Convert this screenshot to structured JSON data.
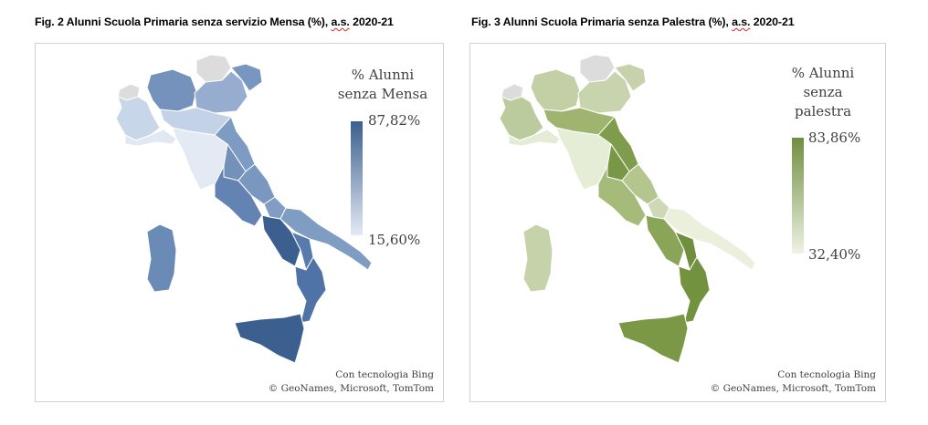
{
  "figures": [
    {
      "title_prefix": "Fig. 2 Alunni Scuola Primaria senza servizio Mensa (%), ",
      "title_acronym": "a.s.",
      "title_suffix": " 2020-21",
      "legend_lines": [
        "% Alunni",
        "senza Mensa"
      ],
      "legend_max": "87,82%",
      "legend_min": "15,60%",
      "color_max": "#3b5f8f",
      "color_min": "#e3eaf4",
      "credit_line1": "Con tecnologia Bing",
      "credit_line2": "© GeoNames, Microsoft, TomTom"
    },
    {
      "title_prefix": "Fig. 3 Alunni Scuola Primaria senza Palestra (%), ",
      "title_acronym": "a.s.",
      "title_suffix": " 2020-21",
      "legend_lines": [
        "% Alunni",
        "senza",
        "palestra"
      ],
      "legend_max": "83,86%",
      "legend_min": "32,40%",
      "color_max": "#6f8f3f",
      "color_min": "#eef2e4",
      "credit_line1": "Con tecnologia Bing",
      "credit_line2": "© GeoNames, Microsoft, TomTom"
    }
  ],
  "no_data_color": "#dcdcdc"
}
